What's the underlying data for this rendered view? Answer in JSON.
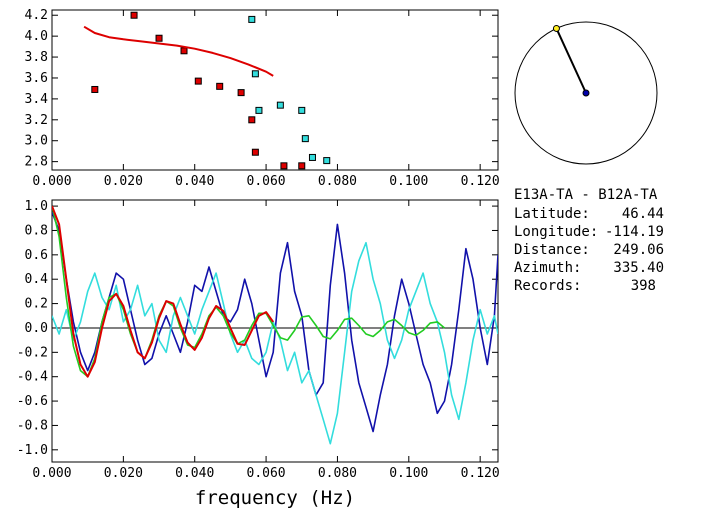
{
  "colors": {
    "red": "#dd0000",
    "cyan": "#33dddd",
    "blue": "#1111aa",
    "green": "#22cc22",
    "yellow": "#ffee22",
    "navy": "#0000aa",
    "black": "#000000"
  },
  "info": {
    "title": "E13A-TA - B12A-TA",
    "rows": [
      {
        "label": "Latitude:",
        "value": "46.44"
      },
      {
        "label": "Longitude:",
        "value": "-114.19"
      },
      {
        "label": "Distance:",
        "value": "249.06"
      },
      {
        "label": "Azimuth:",
        "value": "335.40"
      },
      {
        "label": "Records:",
        "value": "398"
      }
    ]
  },
  "azimuth_deg": 335.4,
  "chart_data": [
    {
      "type": "scatter",
      "xlim": [
        0.0,
        0.125
      ],
      "ylim": [
        2.72,
        4.25
      ],
      "x_ticks": [
        "0.000",
        "0.020",
        "0.040",
        "0.060",
        "0.080",
        "0.100",
        "0.120"
      ],
      "x_tick_values": [
        0.0,
        0.02,
        0.04,
        0.06,
        0.08,
        0.1,
        0.12
      ],
      "y_ticks": [
        "4.2",
        "4.0",
        "3.8",
        "3.6",
        "3.4",
        "3.2",
        "3.0",
        "2.8"
      ],
      "y_tick_values": [
        4.2,
        4.0,
        3.8,
        3.6,
        3.4,
        3.2,
        3.0,
        2.8
      ],
      "series": [
        {
          "color": "red",
          "marker": "square",
          "x": [
            0.012,
            0.023,
            0.03,
            0.037,
            0.041,
            0.047,
            0.053,
            0.056,
            0.057,
            0.065,
            0.07
          ],
          "y": [
            3.49,
            4.2,
            3.98,
            3.86,
            3.57,
            3.52,
            3.46,
            3.2,
            2.89,
            2.76,
            2.76
          ]
        },
        {
          "color": "cyan",
          "marker": "square",
          "x": [
            0.056,
            0.057,
            0.058,
            0.064,
            0.07,
            0.071,
            0.073,
            0.077
          ],
          "y": [
            4.16,
            3.64,
            3.29,
            3.34,
            3.29,
            3.02,
            2.84,
            2.81
          ]
        },
        {
          "color": "red",
          "marker": "line",
          "x": [
            0.009,
            0.012,
            0.016,
            0.02,
            0.025,
            0.03,
            0.035,
            0.04,
            0.045,
            0.05,
            0.055,
            0.06,
            0.062
          ],
          "y": [
            4.09,
            4.03,
            3.99,
            3.97,
            3.95,
            3.93,
            3.91,
            3.88,
            3.84,
            3.79,
            3.73,
            3.66,
            3.62
          ]
        }
      ]
    },
    {
      "type": "line",
      "xlabel": "frequency (Hz)",
      "xlim": [
        0.0,
        0.125
      ],
      "ylim": [
        -1.1,
        1.05
      ],
      "x_ticks": [
        "0.000",
        "0.020",
        "0.040",
        "0.060",
        "0.080",
        "0.100",
        "0.120"
      ],
      "x_tick_values": [
        0.0,
        0.02,
        0.04,
        0.06,
        0.08,
        0.1,
        0.12
      ],
      "y_ticks": [
        "1.0",
        "0.8",
        "0.6",
        "0.4",
        "0.2",
        "0.0",
        "-0.2",
        "-0.4",
        "-0.6",
        "-0.8",
        "-1.0"
      ],
      "y_tick_values": [
        1.0,
        0.8,
        0.6,
        0.4,
        0.2,
        0.0,
        -0.2,
        -0.4,
        -0.6,
        -0.8,
        -1.0
      ],
      "series": [
        {
          "color": "blue",
          "x": [
            0.0,
            0.002,
            0.004,
            0.006,
            0.008,
            0.01,
            0.012,
            0.014,
            0.016,
            0.018,
            0.02,
            0.022,
            0.024,
            0.026,
            0.028,
            0.03,
            0.032,
            0.034,
            0.036,
            0.038,
            0.04,
            0.042,
            0.044,
            0.046,
            0.048,
            0.05,
            0.052,
            0.054,
            0.056,
            0.058,
            0.06,
            0.062,
            0.064,
            0.066,
            0.068,
            0.07,
            0.072,
            0.074,
            0.076,
            0.078,
            0.08,
            0.082,
            0.084,
            0.086,
            0.088,
            0.09,
            0.092,
            0.094,
            0.096,
            0.098,
            0.1,
            0.102,
            0.104,
            0.106,
            0.108,
            0.11,
            0.112,
            0.114,
            0.116,
            0.118,
            0.12,
            0.122,
            0.124,
            0.125
          ],
          "y": [
            0.95,
            0.8,
            0.4,
            0.05,
            -0.2,
            -0.35,
            -0.2,
            0.05,
            0.25,
            0.45,
            0.4,
            0.15,
            -0.1,
            -0.3,
            -0.25,
            -0.05,
            0.1,
            -0.05,
            -0.2,
            0.05,
            0.35,
            0.3,
            0.5,
            0.3,
            0.1,
            0.05,
            0.15,
            0.4,
            0.2,
            -0.1,
            -0.4,
            -0.2,
            0.45,
            0.7,
            0.3,
            0.1,
            -0.35,
            -0.55,
            -0.45,
            0.35,
            0.85,
            0.45,
            -0.1,
            -0.45,
            -0.65,
            -0.85,
            -0.55,
            -0.3,
            0.1,
            0.4,
            0.2,
            -0.05,
            -0.3,
            -0.45,
            -0.7,
            -0.6,
            -0.3,
            0.15,
            0.65,
            0.4,
            0.0,
            -0.3,
            0.1,
            0.6
          ]
        },
        {
          "color": "cyan",
          "x": [
            0.0,
            0.002,
            0.004,
            0.006,
            0.008,
            0.01,
            0.012,
            0.014,
            0.016,
            0.018,
            0.02,
            0.022,
            0.024,
            0.026,
            0.028,
            0.03,
            0.032,
            0.034,
            0.036,
            0.038,
            0.04,
            0.042,
            0.044,
            0.046,
            0.048,
            0.05,
            0.052,
            0.054,
            0.056,
            0.058,
            0.06,
            0.062,
            0.064,
            0.066,
            0.068,
            0.07,
            0.072,
            0.074,
            0.076,
            0.078,
            0.08,
            0.082,
            0.084,
            0.086,
            0.088,
            0.09,
            0.092,
            0.094,
            0.096,
            0.098,
            0.1,
            0.102,
            0.104,
            0.106,
            0.108,
            0.11,
            0.112,
            0.114,
            0.116,
            0.118,
            0.12,
            0.122,
            0.124,
            0.125
          ],
          "y": [
            0.1,
            -0.05,
            0.15,
            -0.1,
            0.05,
            0.3,
            0.45,
            0.25,
            0.15,
            0.35,
            0.05,
            0.15,
            0.35,
            0.1,
            0.2,
            -0.1,
            -0.2,
            0.1,
            0.25,
            0.1,
            -0.05,
            0.15,
            0.3,
            0.45,
            0.2,
            -0.05,
            -0.2,
            -0.1,
            -0.25,
            -0.3,
            -0.2,
            0.05,
            -0.1,
            -0.35,
            -0.2,
            -0.45,
            -0.35,
            -0.55,
            -0.75,
            -0.95,
            -0.7,
            -0.2,
            0.3,
            0.55,
            0.7,
            0.4,
            0.2,
            -0.1,
            -0.25,
            -0.1,
            0.15,
            0.3,
            0.45,
            0.2,
            0.05,
            -0.2,
            -0.55,
            -0.75,
            -0.45,
            -0.1,
            0.15,
            -0.05,
            0.1,
            -0.05
          ]
        },
        {
          "color": "green",
          "x": [
            0.0,
            0.002,
            0.004,
            0.006,
            0.008,
            0.01,
            0.012,
            0.014,
            0.016,
            0.018,
            0.02,
            0.022,
            0.024,
            0.026,
            0.028,
            0.03,
            0.032,
            0.034,
            0.036,
            0.038,
            0.04,
            0.042,
            0.044,
            0.046,
            0.048,
            0.05,
            0.052,
            0.054,
            0.056,
            0.058,
            0.06,
            0.062,
            0.064,
            0.066,
            0.068,
            0.07,
            0.072,
            0.074,
            0.076,
            0.078,
            0.08,
            0.082,
            0.084,
            0.086,
            0.088,
            0.09,
            0.092,
            0.094,
            0.096,
            0.098,
            0.1,
            0.102,
            0.104,
            0.106,
            0.108,
            0.11
          ],
          "y": [
            1.0,
            0.75,
            0.25,
            -0.15,
            -0.35,
            -0.4,
            -0.25,
            0.05,
            0.25,
            0.28,
            0.15,
            -0.05,
            -0.2,
            -0.25,
            -0.1,
            0.1,
            0.22,
            0.18,
            0.0,
            -0.14,
            -0.16,
            -0.05,
            0.1,
            0.17,
            0.1,
            -0.04,
            -0.13,
            -0.1,
            0.02,
            0.12,
            0.12,
            0.02,
            -0.08,
            -0.1,
            -0.02,
            0.09,
            0.1,
            0.02,
            -0.07,
            -0.09,
            -0.02,
            0.07,
            0.08,
            0.02,
            -0.05,
            -0.07,
            -0.02,
            0.05,
            0.07,
            0.02,
            -0.04,
            -0.06,
            -0.02,
            0.04,
            0.05,
            0.0
          ]
        },
        {
          "color": "red",
          "x": [
            0.0,
            0.002,
            0.004,
            0.006,
            0.008,
            0.01,
            0.012,
            0.014,
            0.016,
            0.018,
            0.02,
            0.022,
            0.024,
            0.026,
            0.028,
            0.03,
            0.032,
            0.034,
            0.036,
            0.038,
            0.04,
            0.042,
            0.044,
            0.046,
            0.048,
            0.05,
            0.052,
            0.054,
            0.056,
            0.058,
            0.06,
            0.062
          ],
          "y": [
            1.0,
            0.85,
            0.4,
            -0.05,
            -0.3,
            -0.4,
            -0.28,
            0.0,
            0.22,
            0.28,
            0.18,
            -0.02,
            -0.2,
            -0.25,
            -0.12,
            0.08,
            0.22,
            0.2,
            0.03,
            -0.12,
            -0.18,
            -0.08,
            0.08,
            0.18,
            0.14,
            0.0,
            -0.13,
            -0.14,
            -0.02,
            0.1,
            0.13,
            0.05
          ]
        }
      ]
    }
  ]
}
